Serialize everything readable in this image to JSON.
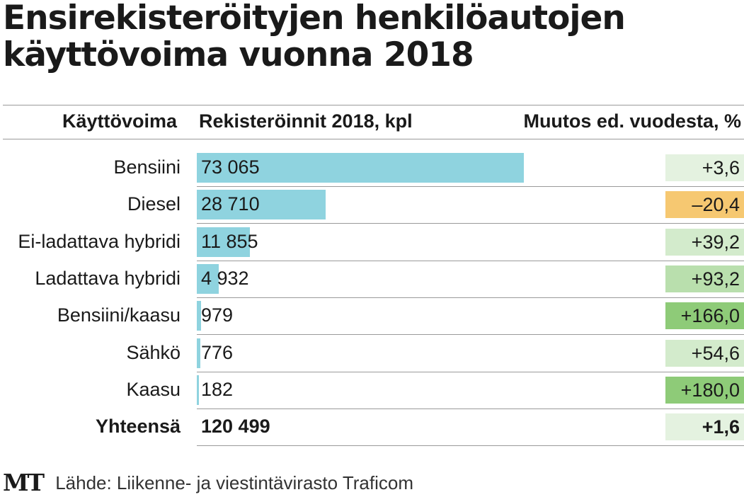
{
  "title": "Ensirekisteröityjen henkilöautojen käyttövoima vuonna 2018",
  "headers": {
    "category": "Käyttövoima",
    "value": "Rekisteröinnit 2018, kpl",
    "change": "Muutos ed. vuodesta, %"
  },
  "chart_data": {
    "type": "bar",
    "title": "Ensirekisteröityjen henkilöautojen käyttövoima vuonna 2018",
    "categories": [
      "Bensiini",
      "Diesel",
      "Ei-ladattava hybridi",
      "Ladattava hybridi",
      "Bensiini/kaasu",
      "Sähkö",
      "Kaasu"
    ],
    "values": [
      73065,
      28710,
      11855,
      4932,
      979,
      776,
      182
    ],
    "value_labels": [
      "73 065",
      "28 710",
      "11 855",
      "4 932",
      "979",
      "776",
      "182"
    ],
    "changes": [
      3.6,
      -20.4,
      39.2,
      93.2,
      166.0,
      54.6,
      180.0
    ],
    "change_labels": [
      "+3,6",
      "–20,4",
      "+39,2",
      "+93,2",
      "+166,0",
      "+54,6",
      "+180,0"
    ],
    "total": {
      "label": "Yhteensä",
      "value": 120499,
      "value_label": "120 499",
      "change": 1.6,
      "change_label": "+1,6"
    },
    "bar_color": "#8fd3df"
  },
  "colors": {
    "bar": "#8fd3df",
    "negative": "#f6c871",
    "positive_scale": [
      "#e4f2e0",
      "#d3ebcc",
      "#b9dfad",
      "#8ecb78"
    ]
  },
  "footer": {
    "logo": "MT",
    "source": "Lähde: Liikenne- ja viestintävirasto Traficom"
  }
}
